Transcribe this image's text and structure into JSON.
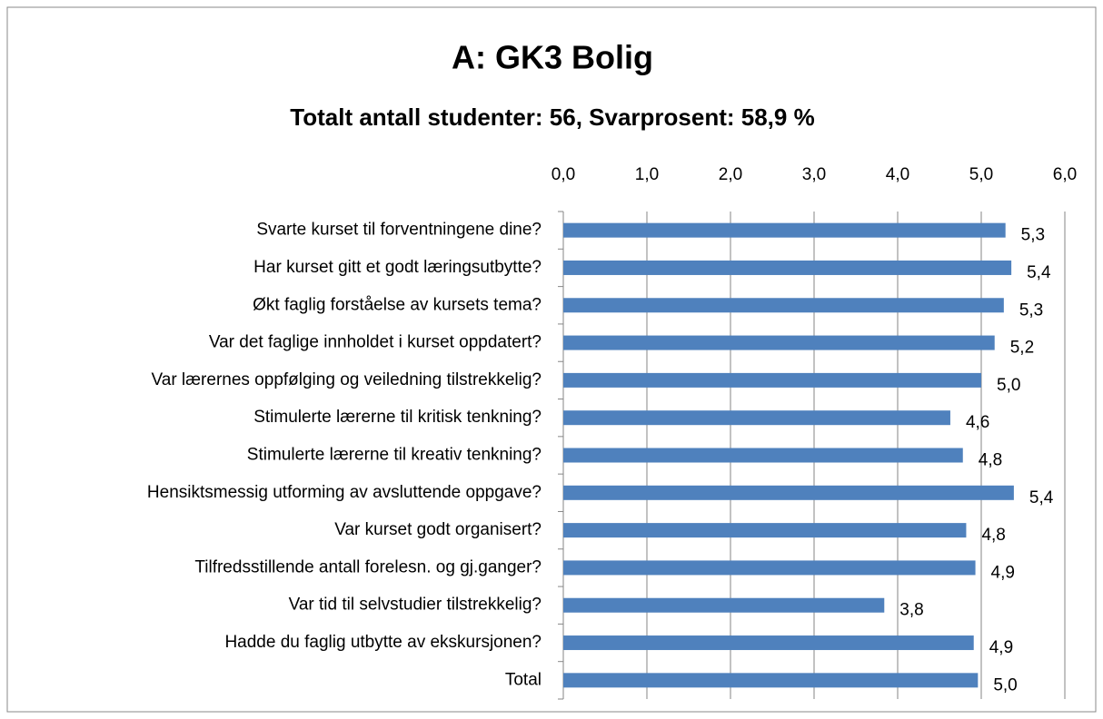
{
  "chart_data": {
    "type": "barh",
    "title": "A: GK3 Bolig",
    "subtitle": "Totalt antall studenter: 56, Svarprosent: 58,9 %",
    "categories": [
      "Svarte kurset til forventningene dine?",
      "Har kurset gitt et godt læringsutbytte?",
      "Økt faglig forståelse av kursets tema?",
      "Var det faglige innholdet i kurset oppdatert?",
      "Var lærernes oppfølging og veiledning tilstrekkelig?",
      "Stimulerte lærerne til kritisk tenkning?",
      "Stimulerte lærerne til kreativ tenkning?",
      "Hensiktsmessig utforming av avsluttende oppgave?",
      "Var kurset godt organisert?",
      "Tilfredsstillende antall forelesn. og gj.ganger?",
      "Var tid til selvstudier tilstrekkelig?",
      "Hadde du faglig utbytte av ekskursjonen?",
      "Total"
    ],
    "values": [
      5.29,
      5.36,
      5.27,
      5.16,
      5.0,
      4.63,
      4.78,
      5.39,
      4.82,
      4.93,
      3.84,
      4.91,
      4.96
    ],
    "value_labels": [
      "5,3",
      "5,4",
      "5,3",
      "5,2",
      "5,0",
      "4,6",
      "4,8",
      "5,4",
      "4,8",
      "4,9",
      "3,8",
      "4,9",
      "5,0"
    ],
    "color": "#4f81bd",
    "xlim": [
      0,
      6
    ],
    "xticks": [
      {
        "value": 0,
        "label": "0,0"
      },
      {
        "value": 1,
        "label": "1,0"
      },
      {
        "value": 2,
        "label": "2,0"
      },
      {
        "value": 3,
        "label": "3,0"
      },
      {
        "value": 4,
        "label": "4,0"
      },
      {
        "value": 5,
        "label": "5,0"
      },
      {
        "value": 6,
        "label": "6,0"
      }
    ],
    "grid": true
  }
}
